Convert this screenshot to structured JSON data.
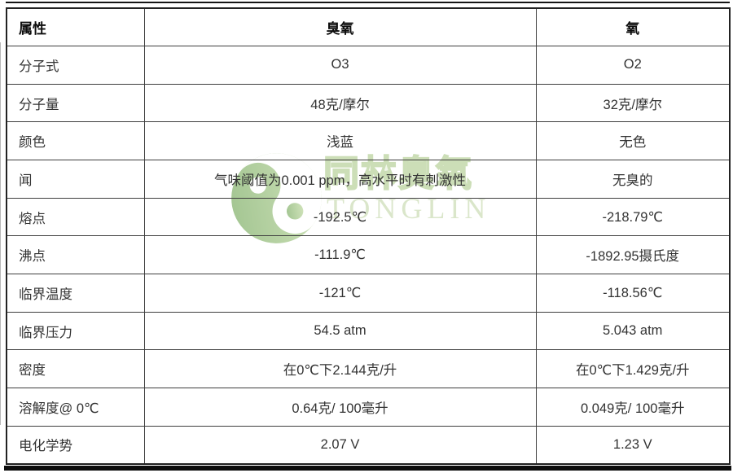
{
  "watermark": {
    "brand_cn": "同林臭氧",
    "brand_en": "TONGLIN",
    "logo_color_dark": "#4d8f2f",
    "logo_color_light": "#b5d48c",
    "text_color": "#bdd2a0"
  },
  "table": {
    "columns": [
      "属性",
      "臭氧",
      "氧"
    ],
    "rows": [
      {
        "label": "分子式",
        "ozone": "O3",
        "oxygen": "O2"
      },
      {
        "label": "分子量",
        "ozone": "48克/摩尔",
        "oxygen": "32克/摩尔"
      },
      {
        "label": "颜色",
        "ozone": "浅蓝",
        "oxygen": "无色"
      },
      {
        "label": "闻",
        "ozone": "气味阈值为0.001 ppm，高水平时有刺激性",
        "oxygen": "无臭的"
      },
      {
        "label": "熔点",
        "ozone": "-192.5℃",
        "oxygen": "-218.79℃"
      },
      {
        "label": "沸点",
        "ozone": "-111.9℃",
        "oxygen": "-1892.95摄氏度"
      },
      {
        "label": "临界温度",
        "ozone": "-121℃",
        "oxygen": "-118.56℃"
      },
      {
        "label": "临界压力",
        "ozone": "54.5 atm",
        "oxygen": "5.043 atm"
      },
      {
        "label": "密度",
        "ozone": "在0℃下2.144克/升",
        "oxygen": "在0℃下1.429克/升"
      },
      {
        "label": "溶解度@ 0℃",
        "ozone": "0.64克/ 100毫升",
        "oxygen": "0.049克/ 100毫升"
      },
      {
        "label": "电化学势",
        "ozone": "2.07 V",
        "oxygen": "1.23 V"
      }
    ]
  }
}
